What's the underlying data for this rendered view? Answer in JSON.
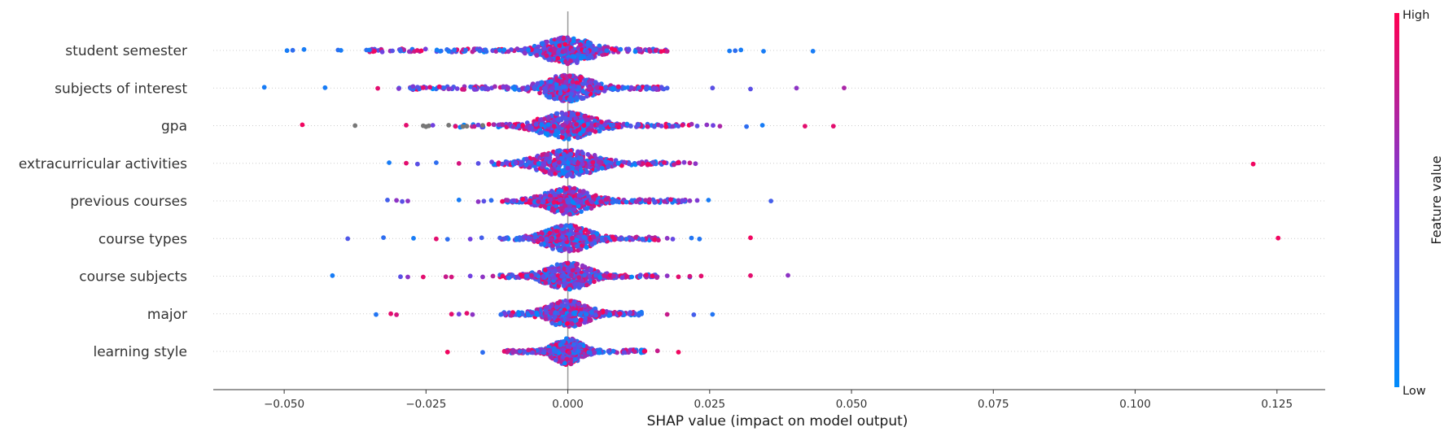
{
  "chart_data": {
    "type": "scatter",
    "subtype": "shap-beeswarm",
    "xlabel": "SHAP value (impact on model output)",
    "xlim": [
      -0.0625,
      0.1335
    ],
    "x_ticks": [
      {
        "value": -0.05,
        "label": "−0.050"
      },
      {
        "value": -0.025,
        "label": "−0.025"
      },
      {
        "value": 0.0,
        "label": "0.000"
      },
      {
        "value": 0.025,
        "label": "0.025"
      },
      {
        "value": 0.05,
        "label": "0.050"
      },
      {
        "value": 0.075,
        "label": "0.075"
      },
      {
        "value": 0.1,
        "label": "0.100"
      },
      {
        "value": 0.125,
        "label": "0.125"
      }
    ],
    "features": [
      {
        "name": "student semester",
        "spread": 0.0038,
        "sweep": [
          -0.035,
          0.018
        ],
        "points": [
          [
            -0.0495,
            0.1
          ],
          [
            -0.0485,
            0.2
          ],
          [
            -0.0465,
            0.1
          ],
          [
            -0.0405,
            0.2
          ],
          [
            -0.04,
            0.1
          ],
          [
            -0.0355,
            0.2
          ],
          [
            -0.035,
            0.1
          ],
          [
            -0.0295,
            0.2
          ],
          [
            -0.0225,
            0.1
          ],
          [
            -0.021,
            0.1
          ],
          [
            -0.02,
            0.15
          ],
          [
            -0.018,
            0.2
          ],
          [
            -0.0155,
            0.2
          ],
          [
            -0.0145,
            0.2
          ],
          [
            -0.012,
            0.1
          ],
          [
            0.0145,
            0.8
          ],
          [
            0.0155,
            0.85
          ],
          [
            0.017,
            0.95
          ],
          [
            0.0175,
            0.8
          ],
          [
            0.0285,
            0.1
          ],
          [
            0.0295,
            0.2
          ],
          [
            0.0305,
            0.1
          ],
          [
            0.0345,
            0.1
          ],
          [
            0.0432,
            0.1
          ]
        ]
      },
      {
        "name": "subjects of interest",
        "spread": 0.0037,
        "sweep": [
          -0.03,
          0.017
        ],
        "points": [
          [
            -0.0535,
            0.1
          ],
          [
            -0.0428,
            0.1
          ],
          [
            -0.0335,
            0.9
          ],
          [
            -0.0298,
            0.55
          ],
          [
            -0.0265,
            0.4
          ],
          [
            -0.0255,
            0.9
          ],
          [
            -0.021,
            0.6
          ],
          [
            -0.0195,
            0.5
          ],
          [
            -0.0165,
            0.5
          ],
          [
            0.0112,
            0.5
          ],
          [
            0.0125,
            0.2
          ],
          [
            0.0138,
            0.3
          ],
          [
            0.0152,
            0.5
          ],
          [
            0.0165,
            0.4
          ],
          [
            0.0175,
            0.3
          ],
          [
            0.0255,
            0.4
          ],
          [
            0.0322,
            0.4
          ],
          [
            0.0403,
            0.6
          ],
          [
            0.0487,
            0.7
          ]
        ]
      },
      {
        "name": "gpa",
        "spread": 0.0042,
        "sweep": [
          -0.02,
          0.022
        ],
        "points": [
          [
            -0.0468,
            0.95
          ],
          [
            -0.0375,
            -1
          ],
          [
            -0.0285,
            0.9
          ],
          [
            -0.0255,
            -1
          ],
          [
            -0.025,
            -1
          ],
          [
            -0.0245,
            -1
          ],
          [
            -0.0238,
            0.5
          ],
          [
            -0.021,
            -1
          ],
          [
            -0.0198,
            0.9
          ],
          [
            -0.0185,
            -1
          ],
          [
            -0.0178,
            -1
          ],
          [
            -0.0158,
            0.5
          ],
          [
            -0.015,
            -1
          ],
          [
            -0.0122,
            0.6
          ],
          [
            0.0125,
            0.3
          ],
          [
            0.014,
            0.85
          ],
          [
            0.0165,
            0.5
          ],
          [
            0.0185,
            0.6
          ],
          [
            0.0202,
            0.9
          ],
          [
            0.0228,
            0.4
          ],
          [
            0.0245,
            0.6
          ],
          [
            0.0256,
            0.5
          ],
          [
            0.0268,
            0.7
          ],
          [
            0.0315,
            0.2
          ],
          [
            0.0343,
            0.1
          ],
          [
            0.0418,
            0.9
          ],
          [
            0.0468,
            0.9
          ]
        ]
      },
      {
        "name": "extracurricular activities",
        "spread": 0.0045,
        "sweep": [
          -0.014,
          0.02
        ],
        "points": [
          [
            -0.0315,
            0.1
          ],
          [
            -0.0285,
            0.9
          ],
          [
            -0.0265,
            0.4
          ],
          [
            -0.0232,
            0.2
          ],
          [
            -0.0192,
            0.85
          ],
          [
            -0.0158,
            0.4
          ],
          [
            -0.0122,
            0.9
          ],
          [
            -0.0108,
            0.5
          ],
          [
            0.0125,
            0.6
          ],
          [
            0.015,
            0.4
          ],
          [
            0.017,
            0.9
          ],
          [
            0.0195,
            0.95
          ],
          [
            0.0205,
            0.55
          ],
          [
            0.0215,
            0.8
          ],
          [
            0.0225,
            0.6
          ],
          [
            0.1208,
            0.95
          ]
        ]
      },
      {
        "name": "previous courses",
        "spread": 0.0036,
        "sweep": [
          -0.012,
          0.021
        ],
        "points": [
          [
            -0.0318,
            0.3
          ],
          [
            -0.0302,
            0.6
          ],
          [
            -0.0292,
            0.4
          ],
          [
            -0.0282,
            0.6
          ],
          [
            -0.0192,
            0.1
          ],
          [
            -0.0158,
            0.6
          ],
          [
            -0.0148,
            0.4
          ],
          [
            -0.0135,
            0.2
          ],
          [
            -0.0095,
            0.5
          ],
          [
            0.017,
            0.7
          ],
          [
            0.0195,
            0.6
          ],
          [
            0.0205,
            0.5
          ],
          [
            0.0215,
            0.6
          ],
          [
            0.0228,
            0.55
          ],
          [
            0.0248,
            0.1
          ],
          [
            0.0358,
            0.3
          ]
        ]
      },
      {
        "name": "course types",
        "spread": 0.0035,
        "sweep": [
          -0.012,
          0.016
        ],
        "points": [
          [
            -0.0388,
            0.35
          ],
          [
            -0.0325,
            0.2
          ],
          [
            -0.0272,
            0.1
          ],
          [
            -0.0232,
            0.9
          ],
          [
            -0.0212,
            0.2
          ],
          [
            -0.0172,
            0.5
          ],
          [
            -0.0152,
            0.3
          ],
          [
            0.0175,
            0.6
          ],
          [
            0.0185,
            0.45
          ],
          [
            0.0218,
            0.15
          ],
          [
            0.0232,
            0.15
          ],
          [
            0.0322,
            0.95
          ],
          [
            0.1252,
            0.95
          ]
        ]
      },
      {
        "name": "course subjects",
        "spread": 0.0035,
        "sweep": [
          -0.012,
          0.016
        ],
        "points": [
          [
            -0.0415,
            0.1
          ],
          [
            -0.0295,
            0.4
          ],
          [
            -0.0282,
            0.6
          ],
          [
            -0.0255,
            0.9
          ],
          [
            -0.0215,
            0.8
          ],
          [
            -0.0205,
            0.85
          ],
          [
            -0.0172,
            0.5
          ],
          [
            -0.015,
            0.6
          ],
          [
            -0.0132,
            0.75
          ],
          [
            0.0175,
            0.6
          ],
          [
            0.0195,
            0.9
          ],
          [
            0.0215,
            0.2
          ],
          [
            0.0215,
            0.85
          ],
          [
            0.0235,
            0.9
          ],
          [
            0.0322,
            0.9
          ],
          [
            0.0388,
            0.6
          ]
        ]
      },
      {
        "name": "major",
        "spread": 0.0032,
        "sweep": [
          -0.012,
          0.013
        ],
        "points": [
          [
            -0.0338,
            0.15
          ],
          [
            -0.0312,
            0.9
          ],
          [
            -0.0302,
            0.85
          ],
          [
            -0.0205,
            0.9
          ],
          [
            -0.0192,
            0.5
          ],
          [
            -0.0178,
            0.9
          ],
          [
            -0.0168,
            0.6
          ],
          [
            -0.0118,
            0.2
          ],
          [
            0.0175,
            0.8
          ],
          [
            0.0222,
            0.3
          ],
          [
            0.0255,
            0.15
          ]
        ]
      },
      {
        "name": "learning style",
        "spread": 0.0022,
        "sweep": [
          -0.011,
          0.014
        ],
        "points": [
          [
            -0.0212,
            0.95
          ],
          [
            -0.015,
            0.2
          ],
          [
            -0.0112,
            0.9
          ],
          [
            -0.0105,
            0.8
          ],
          [
            0.0118,
            0.8
          ],
          [
            0.0135,
            0.95
          ],
          [
            0.0158,
            0.8
          ],
          [
            0.0195,
            0.95
          ]
        ]
      }
    ],
    "colorbar": {
      "title": "Feature value",
      "high_label": "High",
      "low_label": "Low",
      "high_color": "#ff0052",
      "low_color": "#008bfb",
      "missing_color": "#777777"
    },
    "grid": false,
    "zero_line_color": "#999999"
  }
}
